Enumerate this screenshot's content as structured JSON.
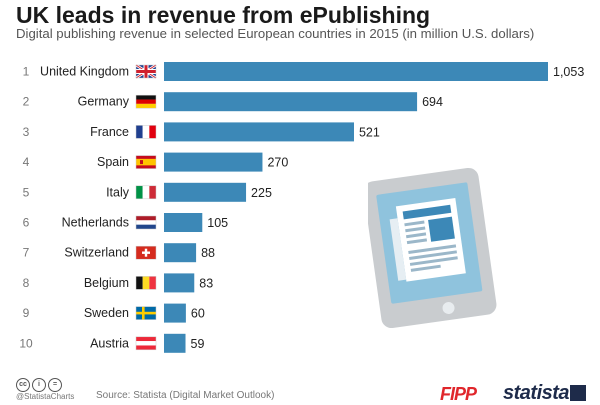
{
  "title": "UK leads in revenue from ePublishing",
  "subtitle": "Digital publishing revenue in selected European countries in 2015 (in million U.S. dollars)",
  "colors": {
    "bar": "#3c88b7",
    "rank": "#777777",
    "label": "#222222"
  },
  "chart_data": {
    "type": "bar",
    "orientation": "horizontal",
    "title": "UK leads in revenue from ePublishing",
    "subtitle": "Digital publishing revenue in selected European countries in 2015 (in million U.S. dollars)",
    "ranks": [
      "1",
      "2",
      "3",
      "4",
      "5",
      "6",
      "7",
      "8",
      "9",
      "10"
    ],
    "categories": [
      "United Kingdom",
      "Germany",
      "France",
      "Spain",
      "Italy",
      "Netherlands",
      "Switzerland",
      "Belgium",
      "Sweden",
      "Austria"
    ],
    "values": [
      1053,
      694,
      521,
      270,
      225,
      105,
      88,
      83,
      60,
      59
    ],
    "value_labels": [
      "1,053",
      "694",
      "521",
      "270",
      "225",
      "105",
      "88",
      "83",
      "60",
      "59"
    ],
    "flags": [
      "uk",
      "germany",
      "france",
      "spain",
      "italy",
      "netherlands",
      "switzerland",
      "belgium",
      "sweden",
      "austria"
    ],
    "xlim": [
      0,
      1053
    ],
    "grid": false,
    "legend": "none"
  },
  "illustration": {
    "icon": "tablet-newspaper-icon"
  },
  "footer": {
    "license_icons": [
      "cc-icon",
      "by-icon",
      "nd-icon"
    ],
    "handle": "@StatistaCharts",
    "source": "Source: Statista (Digital Market Outlook)",
    "logo_fipp": "FIPP",
    "logo_statista": "statista"
  }
}
